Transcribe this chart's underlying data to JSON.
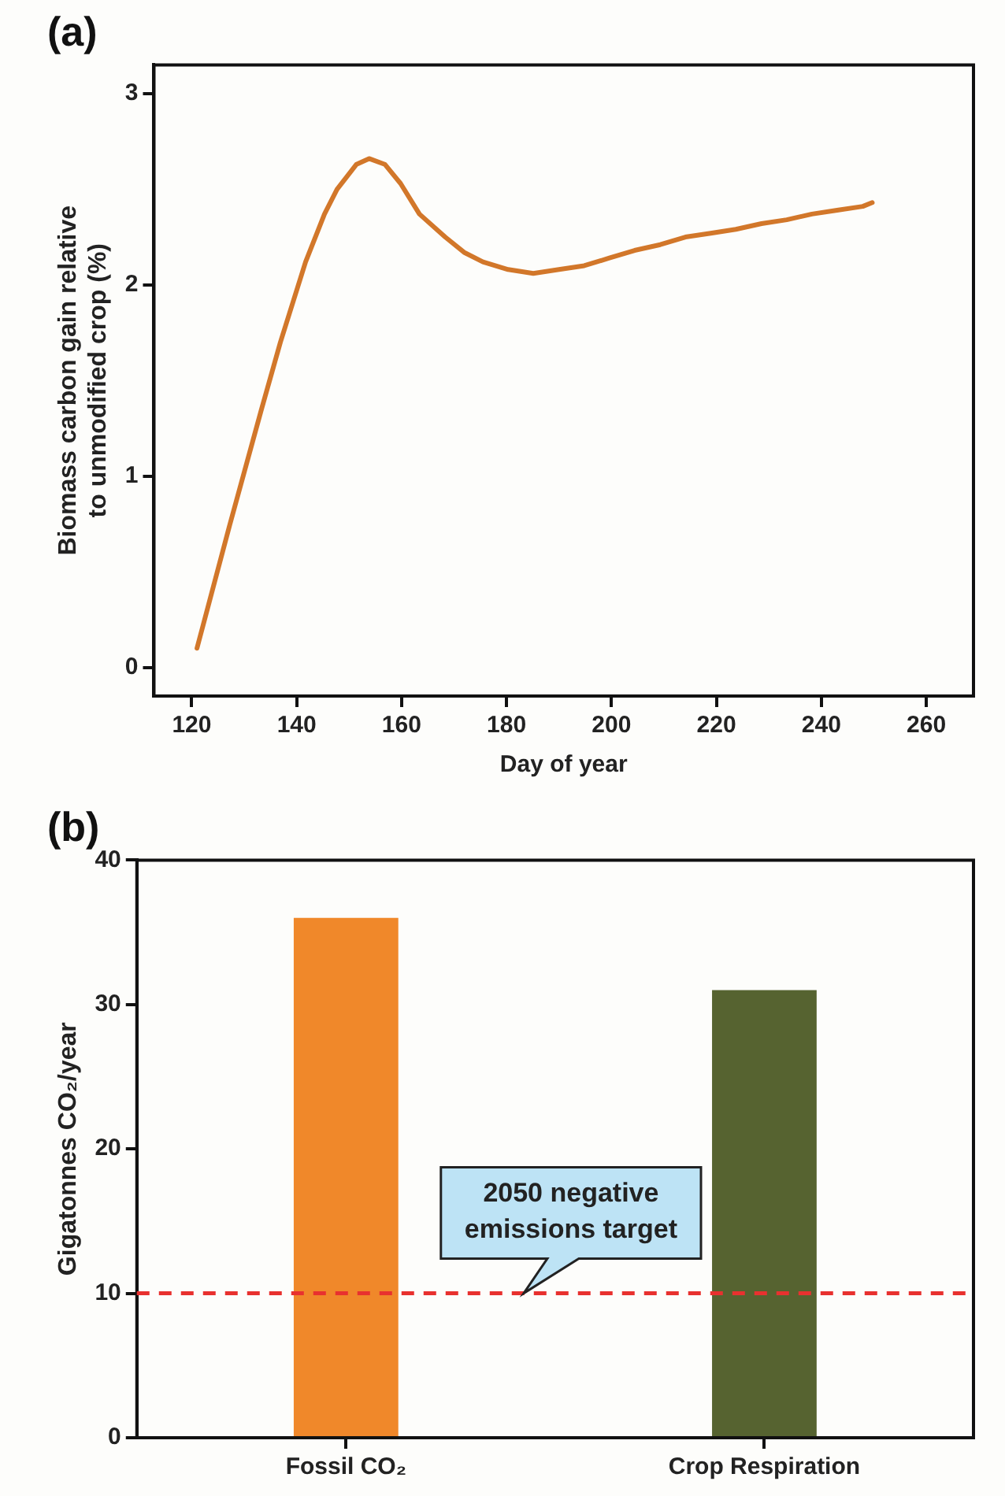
{
  "chart_data": [
    {
      "type": "line",
      "title": "(a)",
      "xlabel": "Day of year",
      "ylabel": "Biomass carbon gain relative\nto unmodified crop (%)",
      "series": [
        {
          "color": "#d2772a",
          "x": [
            121,
            127.2,
            133.3,
            136.9,
            141.7,
            145.3,
            147.7,
            151.4,
            153.8,
            156.8,
            159.8,
            163.4,
            168.3,
            171.9,
            175.5,
            180.3,
            185.1,
            190,
            194.8,
            199.6,
            204.4,
            209.3,
            214.1,
            218.9,
            223.7,
            228.6,
            233.4,
            238.2,
            243,
            247.9,
            249.7
          ],
          "values": [
            0.1,
            0.74,
            1.35,
            1.7,
            2.12,
            2.37,
            2.5,
            2.63,
            2.66,
            2.63,
            2.53,
            2.37,
            2.25,
            2.17,
            2.12,
            2.08,
            2.06,
            2.08,
            2.1,
            2.14,
            2.18,
            2.21,
            2.25,
            2.27,
            2.29,
            2.32,
            2.34,
            2.37,
            2.39,
            2.41,
            2.43
          ]
        }
      ],
      "xlim": [
        112.8,
        269
      ],
      "xticks": [
        120,
        140,
        160,
        180,
        200,
        220,
        240,
        260
      ],
      "ylim": [
        -0.15,
        3.15
      ],
      "yticks": [
        0,
        1,
        2,
        3
      ],
      "grid": false,
      "legend": false,
      "marker": "none",
      "line_style": "solid"
    },
    {
      "type": "bar",
      "title": "(b)",
      "ylabel": "Gigatonnes CO₂/year",
      "categories": [
        "Fossil CO₂",
        "Crop Respiration"
      ],
      "values": [
        36,
        31
      ],
      "colors": [
        "#f0882a",
        "#566330"
      ],
      "ylim": [
        0,
        40
      ],
      "yticks": [
        0,
        10,
        20,
        30,
        40
      ],
      "grid": false,
      "legend": false,
      "ref_lines": [
        {
          "axis": "y",
          "value": 10,
          "label": "2050 negative emissions target",
          "color": "#e8312f",
          "line_style": "dashed"
        }
      ]
    }
  ]
}
